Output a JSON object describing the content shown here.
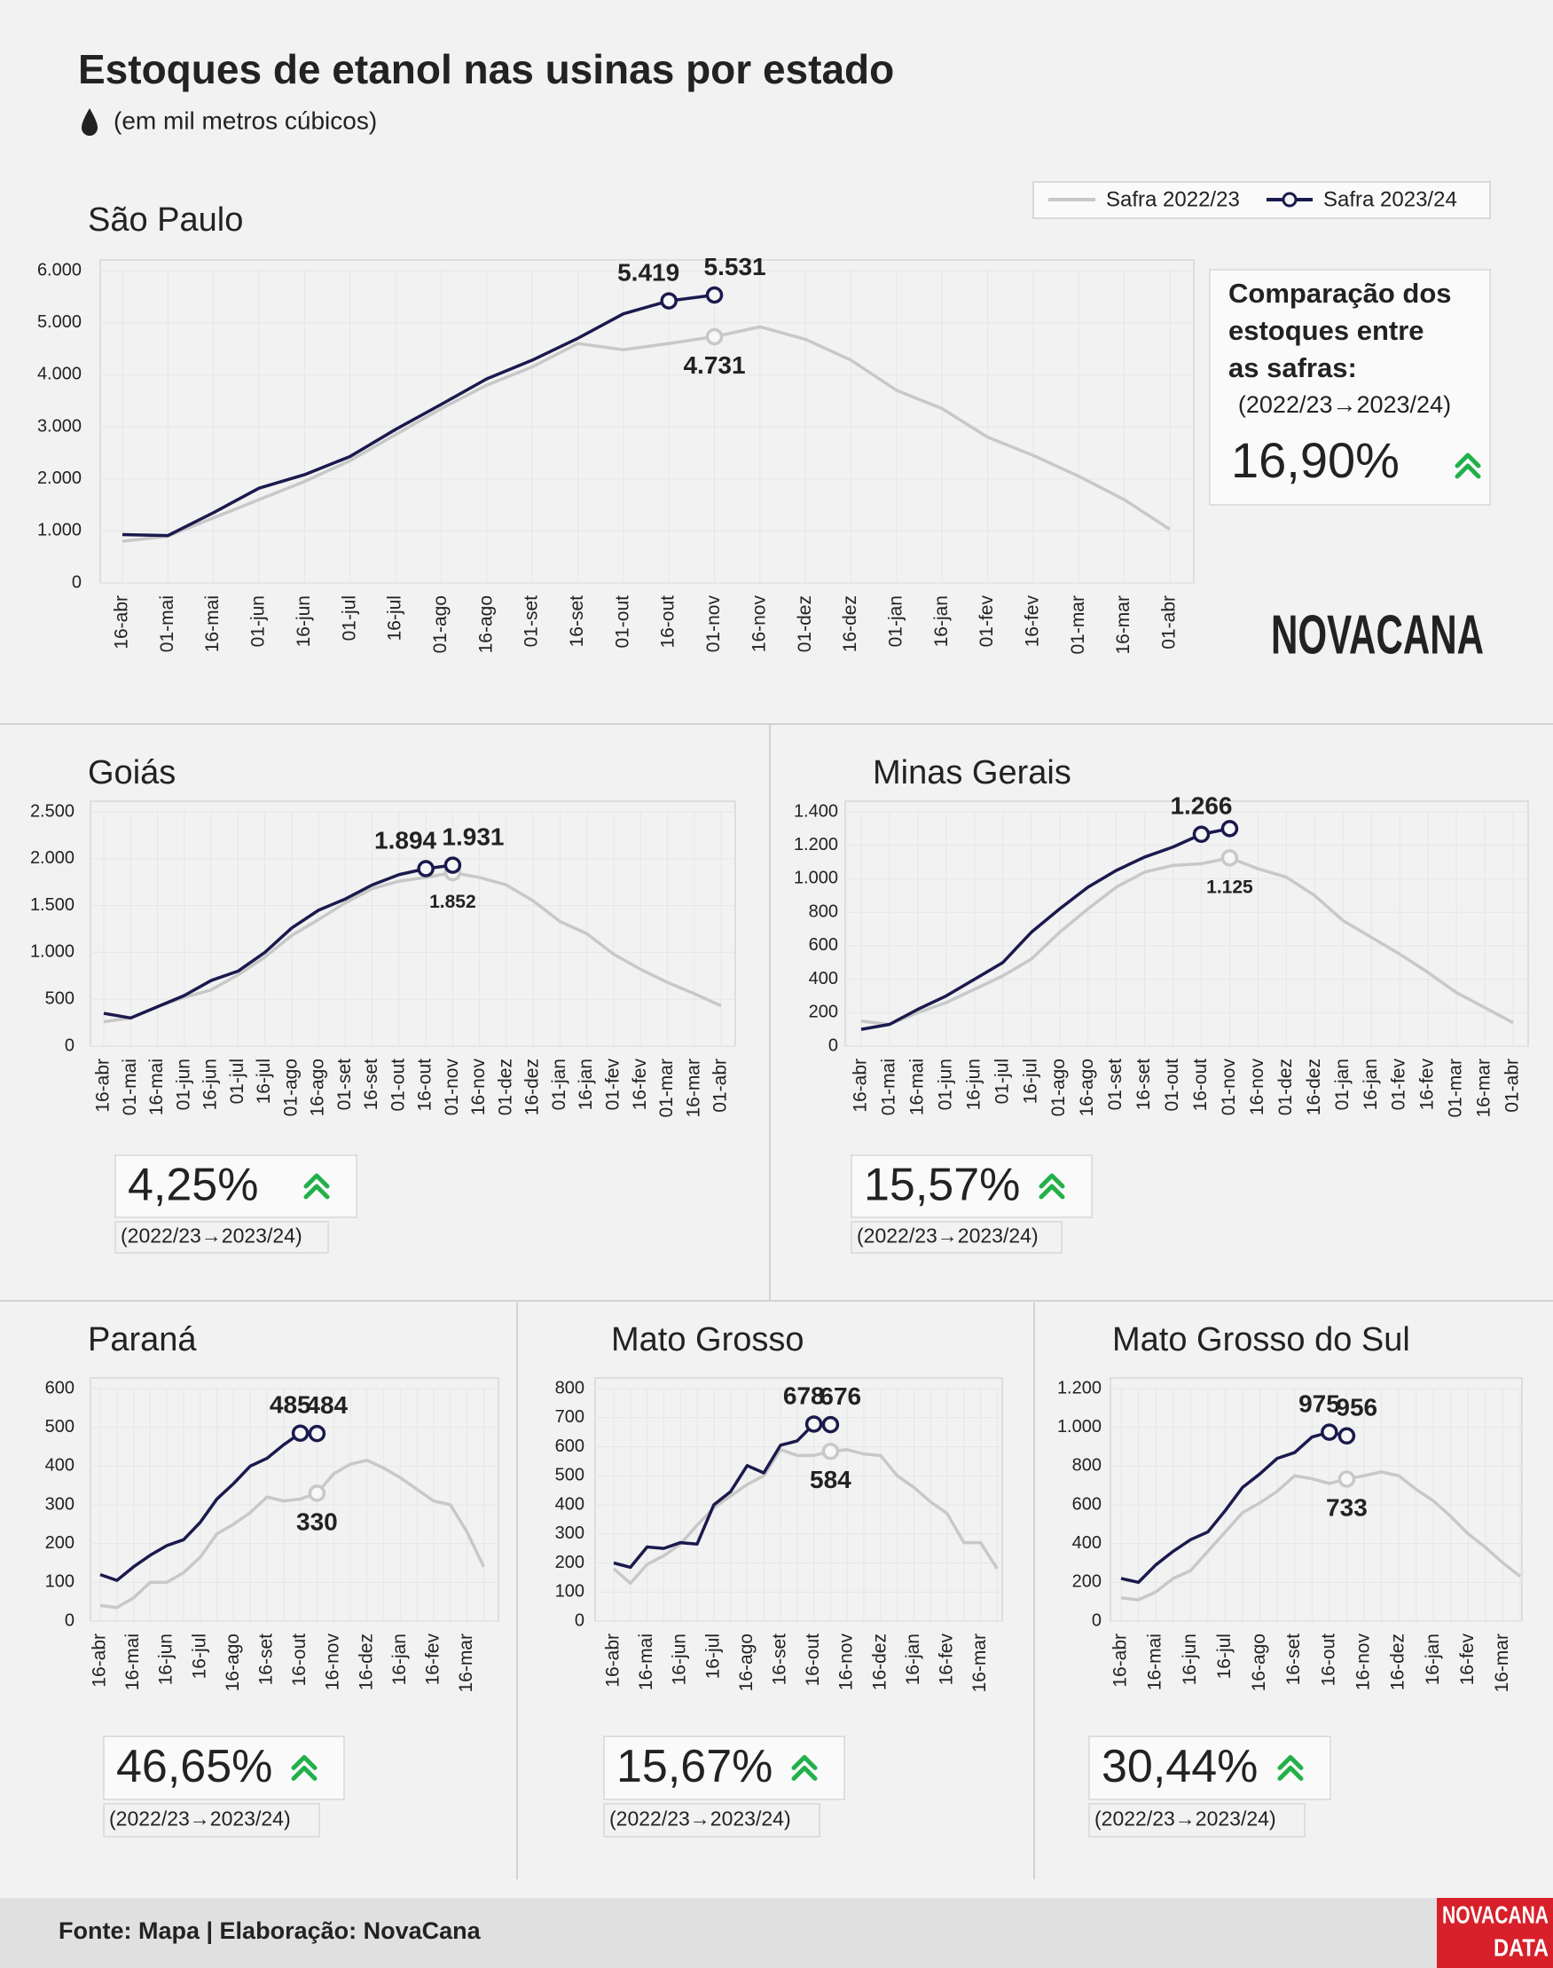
{
  "title": "Estoques de etanol nas usinas por estado",
  "subtitle": "(em mil metros cúbicos)",
  "comparison_heading": [
    "Comparação dos",
    "estoques entre",
    "as safras:"
  ],
  "logo": "NOVACANA",
  "footer": "Fonte: Mapa | Elaboração: NovaCana",
  "footer_logo": [
    "NOVACANA",
    "DATA"
  ],
  "chart_data": [
    {
      "type": "line",
      "title": "São Paulo",
      "legend": "top-right",
      "grid": true,
      "categories": [
        "16-abr",
        "01-mai",
        "16-mai",
        "01-jun",
        "16-jun",
        "01-jul",
        "16-jul",
        "01-ago",
        "16-ago",
        "01-set",
        "16-set",
        "01-out",
        "16-out",
        "01-nov",
        "16-nov",
        "01-dez",
        "16-dez",
        "01-jan",
        "16-jan",
        "01-fev",
        "16-fev",
        "01-mar",
        "16-mar",
        "01-abr"
      ],
      "series": [
        {
          "name": "Safra 2022/23",
          "color": "#c8c8c8",
          "values": [
            800,
            900,
            1250,
            1600,
            1950,
            2350,
            2850,
            3350,
            3800,
            4150,
            4600,
            4480,
            4600,
            4731,
            4920,
            4680,
            4280,
            3700,
            3350,
            2800,
            2450,
            2050,
            1600,
            1030
          ],
          "value_labels": [
            null,
            null,
            null,
            null,
            null,
            null,
            null,
            null,
            null,
            null,
            null,
            null,
            null,
            "4.731",
            null,
            null,
            null,
            null,
            null,
            null,
            null,
            null,
            null,
            null
          ]
        },
        {
          "name": "Safra 2023/24",
          "color": "#1a1a4e",
          "values": [
            930,
            910,
            1350,
            1820,
            2080,
            2430,
            2950,
            3430,
            3920,
            4280,
            4700,
            5170,
            5419,
            5531,
            null,
            null,
            null,
            null,
            null,
            null,
            null,
            null,
            null,
            null
          ],
          "value_labels": [
            null,
            null,
            null,
            null,
            null,
            null,
            null,
            null,
            null,
            null,
            null,
            null,
            "5.419",
            "5.531",
            null,
            null,
            null,
            null,
            null,
            null,
            null,
            null,
            null,
            null
          ]
        }
      ],
      "ylim": [
        0,
        6000
      ],
      "yticks": [
        0,
        {
          "value": 1000,
          "label": "1.000"
        },
        {
          "value": 2000,
          "label": "2.000"
        },
        {
          "value": 3000,
          "label": "3.000"
        },
        {
          "value": 4000,
          "label": "4.000"
        },
        {
          "value": 5000,
          "label": "5.000"
        },
        {
          "value": 6000,
          "label": "6.000"
        }
      ],
      "comparison": "16,90%",
      "comparison_note": "(2022/23→2023/24)"
    },
    {
      "type": "line",
      "title": "Goiás",
      "grid": true,
      "categories": [
        "16-abr",
        "01-mai",
        "16-mai",
        "01-jun",
        "16-jun",
        "01-jul",
        "16-jul",
        "01-ago",
        "16-ago",
        "01-set",
        "16-set",
        "01-out",
        "16-out",
        "01-nov",
        "16-nov",
        "01-dez",
        "16-dez",
        "01-jan",
        "16-jan",
        "01-fev",
        "16-fev",
        "01-mar",
        "16-mar",
        "01-abr"
      ],
      "series": [
        {
          "color": "#c8c8c8",
          "values": [
            260,
            300,
            420,
            520,
            600,
            760,
            950,
            1180,
            1350,
            1530,
            1680,
            1760,
            1800,
            1852,
            1800,
            1720,
            1550,
            1330,
            1200,
            980,
            820,
            680,
            560,
            430
          ],
          "value_labels": [
            null,
            null,
            null,
            null,
            null,
            null,
            null,
            null,
            null,
            null,
            null,
            null,
            null,
            "1.852",
            null,
            null,
            null,
            null,
            null,
            null,
            null,
            null,
            null,
            null
          ]
        },
        {
          "color": "#1a1a4e",
          "values": [
            350,
            300,
            420,
            540,
            700,
            800,
            1000,
            1260,
            1450,
            1570,
            1720,
            1830,
            1894,
            1931,
            null,
            null,
            null,
            null,
            null,
            null,
            null,
            null,
            null,
            null
          ],
          "value_labels": [
            null,
            null,
            null,
            null,
            null,
            null,
            null,
            null,
            null,
            null,
            null,
            null,
            "1.894",
            "1.931",
            null,
            null,
            null,
            null,
            null,
            null,
            null,
            null,
            null,
            null
          ]
        }
      ],
      "ylim": [
        0,
        2500
      ],
      "yticks": [
        0,
        500,
        {
          "value": 1000,
          "label": "1.000"
        },
        {
          "value": 1500,
          "label": "1.500"
        },
        {
          "value": 2000,
          "label": "2.000"
        },
        {
          "value": 2500,
          "label": "2.500"
        }
      ],
      "comparison": "4,25%",
      "comparison_note": "(2022/23→2023/24)"
    },
    {
      "type": "line",
      "title": "Minas Gerais",
      "grid": true,
      "categories": [
        "16-abr",
        "01-mai",
        "16-mai",
        "01-jun",
        "16-jun",
        "01-jul",
        "16-jul",
        "01-ago",
        "16-ago",
        "01-set",
        "16-set",
        "01-out",
        "16-out",
        "01-nov",
        "16-nov",
        "01-dez",
        "16-dez",
        "01-jan",
        "16-jan",
        "01-fev",
        "16-fev",
        "01-mar",
        "16-mar",
        "01-abr"
      ],
      "series": [
        {
          "color": "#c8c8c8",
          "values": [
            150,
            130,
            200,
            260,
            340,
            420,
            520,
            680,
            820,
            950,
            1040,
            1080,
            1090,
            1125,
            1060,
            1010,
            900,
            750,
            650,
            550,
            440,
            320,
            230,
            140
          ],
          "value_labels": [
            null,
            null,
            null,
            null,
            null,
            null,
            null,
            null,
            null,
            null,
            null,
            null,
            null,
            "1.125",
            null,
            null,
            null,
            null,
            null,
            null,
            null,
            null,
            null,
            null
          ]
        },
        {
          "color": "#1a1a4e",
          "values": [
            100,
            130,
            220,
            300,
            400,
            500,
            680,
            820,
            950,
            1050,
            1130,
            1190,
            1266,
            1300,
            null,
            null,
            null,
            null,
            null,
            null,
            null,
            null,
            null,
            null
          ],
          "value_labels": [
            null,
            null,
            null,
            null,
            null,
            null,
            null,
            null,
            null,
            null,
            null,
            null,
            "1.266",
            null,
            null,
            null,
            null,
            null,
            null,
            null,
            null,
            null,
            null,
            null
          ]
        }
      ],
      "ylim": [
        0,
        1400
      ],
      "yticks": [
        0,
        200,
        400,
        600,
        800,
        {
          "value": 1000,
          "label": "1.000"
        },
        {
          "value": 1200,
          "label": "1.200"
        },
        {
          "value": 1400,
          "label": "1.400"
        }
      ],
      "comparison": "15,57%",
      "comparison_note": "(2022/23→2023/24)"
    },
    {
      "type": "line",
      "title": "Paraná",
      "grid": true,
      "categories": [
        "16-abr",
        null,
        "16-mai",
        null,
        "16-jun",
        null,
        "16-jul",
        null,
        "16-ago",
        null,
        "16-set",
        null,
        "16-out",
        null,
        "16-nov",
        null,
        "16-dez",
        null,
        "16-jan",
        null,
        "16-fev",
        null,
        "16-mar",
        null
      ],
      "series": [
        {
          "color": "#c8c8c8",
          "values": [
            40,
            35,
            60,
            100,
            100,
            125,
            165,
            225,
            250,
            280,
            320,
            310,
            315,
            330,
            380,
            405,
            415,
            395,
            370,
            340,
            310,
            300,
            230,
            140
          ],
          "value_labels": [
            null,
            null,
            null,
            null,
            null,
            null,
            null,
            null,
            null,
            null,
            null,
            null,
            null,
            "330",
            null,
            null,
            null,
            null,
            null,
            null,
            null,
            null,
            null,
            null
          ]
        },
        {
          "color": "#1a1a4e",
          "values": [
            120,
            105,
            140,
            170,
            195,
            210,
            255,
            315,
            355,
            400,
            420,
            455,
            485,
            484,
            null,
            null,
            null,
            null,
            null,
            null,
            null,
            null,
            null,
            null
          ],
          "value_labels": [
            null,
            null,
            null,
            null,
            null,
            null,
            null,
            null,
            null,
            null,
            null,
            null,
            "485",
            "484",
            null,
            null,
            null,
            null,
            null,
            null,
            null,
            null,
            null,
            null
          ]
        }
      ],
      "ylim": [
        0,
        600
      ],
      "yticks": [
        0,
        100,
        200,
        300,
        400,
        500,
        600
      ],
      "comparison": "46,65%",
      "comparison_note": "(2022/23→2023/24)"
    },
    {
      "type": "line",
      "title": "Mato Grosso",
      "grid": true,
      "categories": [
        "16-abr",
        null,
        "16-mai",
        null,
        "16-jun",
        null,
        "16-jul",
        null,
        "16-ago",
        null,
        "16-set",
        null,
        "16-out",
        null,
        "16-nov",
        null,
        "16-dez",
        null,
        "16-jan",
        null,
        "16-fev",
        null,
        "16-mar",
        null
      ],
      "series": [
        {
          "color": "#c8c8c8",
          "values": [
            180,
            130,
            195,
            225,
            265,
            330,
            390,
            430,
            470,
            500,
            590,
            570,
            570,
            584,
            590,
            575,
            570,
            500,
            460,
            410,
            370,
            270,
            270,
            180
          ],
          "value_labels": [
            null,
            null,
            null,
            null,
            null,
            null,
            null,
            null,
            null,
            null,
            null,
            null,
            null,
            "584",
            null,
            null,
            null,
            null,
            null,
            null,
            null,
            null,
            null,
            null
          ]
        },
        {
          "color": "#1a1a4e",
          "values": [
            200,
            185,
            255,
            250,
            270,
            265,
            400,
            445,
            535,
            510,
            605,
            620,
            678,
            676,
            null,
            null,
            null,
            null,
            null,
            null,
            null,
            null,
            null,
            null
          ],
          "value_labels": [
            null,
            null,
            null,
            null,
            null,
            null,
            null,
            null,
            null,
            null,
            null,
            null,
            "678",
            "676",
            null,
            null,
            null,
            null,
            null,
            null,
            null,
            null,
            null,
            null
          ]
        }
      ],
      "ylim": [
        0,
        800
      ],
      "yticks": [
        0,
        100,
        200,
        300,
        400,
        500,
        600,
        700,
        800
      ],
      "comparison": "15,67%",
      "comparison_note": "(2022/23→2023/24)"
    },
    {
      "type": "line",
      "title": "Mato Grosso do Sul",
      "grid": true,
      "categories": [
        "16-abr",
        null,
        "16-mai",
        null,
        "16-jun",
        null,
        "16-jul",
        null,
        "16-ago",
        null,
        "16-set",
        null,
        "16-out",
        null,
        "16-nov",
        null,
        "16-dez",
        null,
        "16-jan",
        null,
        "16-fev",
        null,
        "16-mar",
        null
      ],
      "series": [
        {
          "color": "#c8c8c8",
          "values": [
            120,
            110,
            150,
            220,
            260,
            360,
            460,
            560,
            610,
            670,
            750,
            735,
            710,
            733,
            750,
            770,
            750,
            680,
            620,
            540,
            450,
            380,
            300,
            230
          ],
          "value_labels": [
            null,
            null,
            null,
            null,
            null,
            null,
            null,
            null,
            null,
            null,
            null,
            null,
            null,
            "733",
            null,
            null,
            null,
            null,
            null,
            null,
            null,
            null,
            null,
            null
          ]
        },
        {
          "color": "#1a1a4e",
          "values": [
            220,
            200,
            290,
            360,
            420,
            460,
            570,
            690,
            760,
            840,
            870,
            950,
            975,
            956,
            null,
            null,
            null,
            null,
            null,
            null,
            null,
            null,
            null,
            null
          ],
          "value_labels": [
            null,
            null,
            null,
            null,
            null,
            null,
            null,
            null,
            null,
            null,
            null,
            null,
            "975",
            "956",
            null,
            null,
            null,
            null,
            null,
            null,
            null,
            null,
            null,
            null
          ]
        }
      ],
      "ylim": [
        0,
        1200
      ],
      "yticks": [
        0,
        200,
        400,
        600,
        800,
        {
          "value": 1000,
          "label": "1.000"
        },
        {
          "value": 1200,
          "label": "1.200"
        }
      ],
      "comparison": "30,44%",
      "comparison_note": "(2022/23→2023/24)"
    }
  ]
}
